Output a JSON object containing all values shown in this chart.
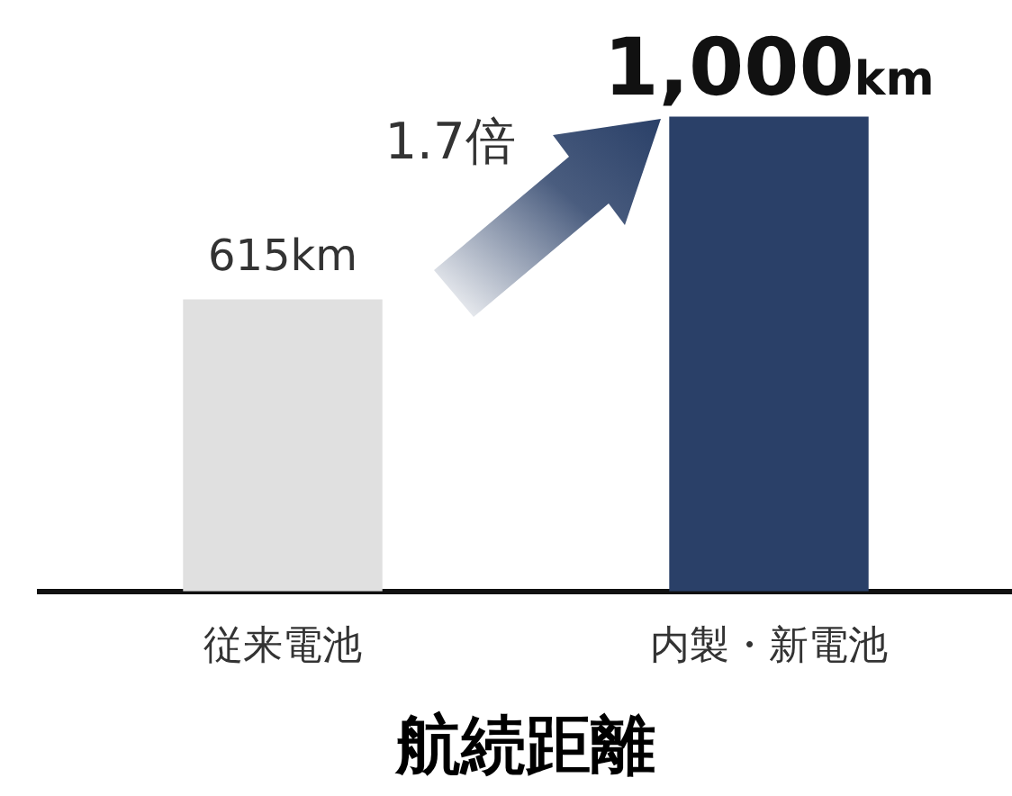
{
  "chart_data": {
    "type": "bar",
    "categories": [
      "従来電池",
      "内製・新電池"
    ],
    "values": [
      615,
      1000
    ],
    "colors": [
      "#e0e0e0",
      "#2a4068"
    ],
    "value_labels": [
      "615km",
      "1,000km"
    ],
    "xlabel": "航続距離",
    "annotations": [
      "1.7倍"
    ]
  }
}
